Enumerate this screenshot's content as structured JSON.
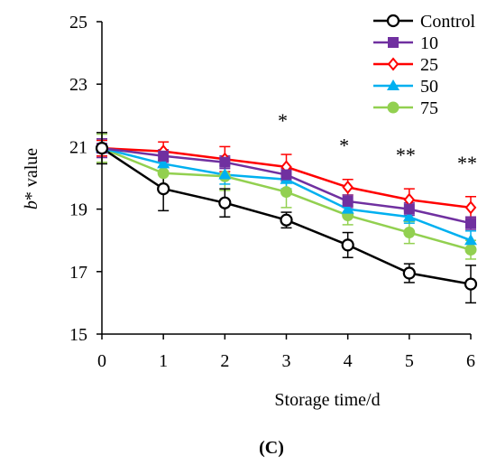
{
  "chart_data": {
    "type": "line",
    "xlabel": "Storage time/d",
    "ylabel_italic": "b",
    "ylabel_rest": "* value",
    "panel_label": "(C)",
    "x": [
      0,
      1,
      2,
      3,
      4,
      5,
      6
    ],
    "xlim": [
      0,
      6
    ],
    "ylim": [
      15,
      25
    ],
    "y_ticks": [
      15,
      17,
      19,
      21,
      23,
      25
    ],
    "legend_position": "top-right",
    "series": [
      {
        "name": "Control",
        "color": "#000000",
        "marker": "circle-open",
        "values": [
          20.95,
          19.65,
          19.2,
          18.65,
          17.85,
          16.95,
          16.6
        ],
        "errors": [
          0.5,
          0.7,
          0.45,
          0.25,
          0.4,
          0.3,
          0.6
        ]
      },
      {
        "name": "10",
        "color": "#7030a0",
        "marker": "square-filled",
        "values": [
          20.95,
          20.7,
          20.5,
          20.1,
          19.25,
          19.0,
          18.55
        ],
        "errors": [
          0.3,
          0.2,
          0.2,
          0.2,
          0.2,
          0.2,
          0.2
        ]
      },
      {
        "name": "25",
        "color": "#ff0000",
        "marker": "diamond-open",
        "values": [
          20.95,
          20.85,
          20.6,
          20.35,
          19.7,
          19.3,
          19.05
        ],
        "errors": [
          0.25,
          0.3,
          0.4,
          0.4,
          0.25,
          0.35,
          0.35
        ]
      },
      {
        "name": "50",
        "color": "#00b0f0",
        "marker": "triangle-filled",
        "values": [
          20.95,
          20.45,
          20.1,
          19.95,
          19.0,
          18.75,
          18.0
        ],
        "errors": [
          0.25,
          0.25,
          0.3,
          0.3,
          0.2,
          0.2,
          0.3
        ]
      },
      {
        "name": "75",
        "color": "#92d050",
        "marker": "circle-filled",
        "values": [
          20.95,
          20.15,
          20.05,
          19.55,
          18.8,
          18.25,
          17.7
        ],
        "errors": [
          0.45,
          0.4,
          0.45,
          0.5,
          0.3,
          0.35,
          0.3
        ]
      }
    ],
    "significance": [
      {
        "x": 3,
        "label": "*"
      },
      {
        "x": 4,
        "label": "*"
      },
      {
        "x": 5,
        "label": "**"
      },
      {
        "x": 6,
        "label": "**"
      }
    ]
  }
}
